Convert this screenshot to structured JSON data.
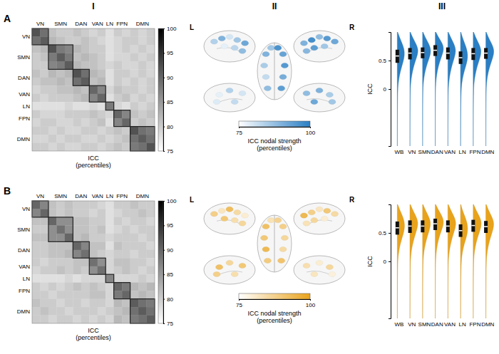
{
  "columns": [
    "I",
    "II",
    "III"
  ],
  "panels": [
    "A",
    "B"
  ],
  "chart_data": [
    {
      "type": "heatmap",
      "color": "#000000",
      "networks": [
        {
          "name": "VN",
          "size": 2
        },
        {
          "name": "SMN",
          "size": 3
        },
        {
          "name": "DAN",
          "size": 2
        },
        {
          "name": "VAN",
          "size": 2
        },
        {
          "name": "LN",
          "size": 1
        },
        {
          "name": "FPN",
          "size": 2
        },
        {
          "name": "DMN",
          "size": 3
        }
      ],
      "cells": [
        [
          92,
          89,
          81,
          80,
          80,
          81,
          80,
          79,
          80,
          78,
          80,
          79,
          80,
          79,
          80
        ],
        [
          91,
          82,
          81,
          80,
          80,
          81,
          80,
          79,
          78,
          79,
          80,
          80,
          79,
          80
        ],
        [
          92,
          88,
          87,
          82,
          81,
          80,
          80,
          78,
          79,
          80,
          79,
          80,
          79
        ],
        [
          91,
          88,
          81,
          82,
          81,
          80,
          78,
          79,
          79,
          80,
          79,
          80
        ],
        [
          91,
          82,
          81,
          81,
          80,
          79,
          80,
          79,
          79,
          80,
          79
        ],
        [
          92,
          89,
          82,
          81,
          78,
          80,
          80,
          79,
          80,
          79
        ],
        [
          91,
          81,
          82,
          78,
          80,
          79,
          80,
          79,
          80
        ],
        [
          90,
          87,
          79,
          81,
          80,
          80,
          79,
          80
        ],
        [
          90,
          78,
          80,
          81,
          79,
          80,
          79
        ],
        [
          88,
          79,
          78,
          80,
          79,
          80
        ],
        [
          90,
          87,
          81,
          80,
          81
        ],
        [
          90,
          80,
          81,
          80
        ],
        [
          92,
          89,
          88
        ],
        [
          91,
          89
        ],
        [
          92
        ]
      ],
      "colorbar": {
        "range": [
          75,
          100
        ],
        "ticks": [
          75,
          80,
          85,
          90,
          95,
          100
        ],
        "label": "ICC (percentiles)"
      }
    },
    {
      "type": "surface",
      "color": "#2a7fc4",
      "labels": [
        "L",
        "R"
      ],
      "strength": [
        [
          84,
          90,
          80,
          86,
          92,
          78,
          83,
          88
        ],
        [
          92,
          95,
          88,
          97,
          90,
          86,
          94,
          89
        ],
        [
          90,
          93,
          85,
          95,
          82,
          91,
          88,
          94,
          86,
          96
        ],
        [
          80,
          84,
          78,
          82,
          79
        ],
        [
          88,
          90,
          85,
          92,
          86
        ]
      ],
      "colorbar": {
        "range": [
          75,
          100
        ],
        "ticks": [
          75,
          100
        ],
        "label": "ICC nodal strength (percentiles)"
      }
    },
    {
      "type": "violin",
      "color": "#2a7fc4",
      "categories": [
        "WB",
        "VN",
        "SMN",
        "DAN",
        "VAN",
        "LN",
        "FPN",
        "DMN"
      ],
      "ylabel": "ICC",
      "ylim": [
        -1,
        1
      ],
      "yticks": [
        0,
        0.5
      ],
      "quartiles": [
        [
          0.46,
          0.58,
          0.69
        ],
        [
          0.52,
          0.63,
          0.72
        ],
        [
          0.54,
          0.64,
          0.73
        ],
        [
          0.58,
          0.68,
          0.77
        ],
        [
          0.52,
          0.63,
          0.73
        ],
        [
          0.44,
          0.55,
          0.66
        ],
        [
          0.51,
          0.62,
          0.72
        ],
        [
          0.53,
          0.63,
          0.72
        ]
      ],
      "density_at": [
        -1,
        -0.8,
        -0.6,
        -0.4,
        -0.2,
        0,
        0.1,
        0.2,
        0.3,
        0.4,
        0.5,
        0.6,
        0.7,
        0.8,
        0.9,
        1
      ],
      "density": [
        [
          0.02,
          0.02,
          0.03,
          0.05,
          0.08,
          0.15,
          0.28,
          0.5,
          0.85,
          1.3,
          1.8,
          2.1,
          2.0,
          1.4,
          0.7,
          0.1
        ],
        [
          0.01,
          0.01,
          0.02,
          0.03,
          0.06,
          0.12,
          0.22,
          0.4,
          0.7,
          1.1,
          1.6,
          2.2,
          2.4,
          1.7,
          0.8,
          0.1
        ],
        [
          0.01,
          0.01,
          0.02,
          0.03,
          0.05,
          0.1,
          0.2,
          0.38,
          0.68,
          1.1,
          1.65,
          2.25,
          2.4,
          1.75,
          0.8,
          0.1
        ],
        [
          0.01,
          0.01,
          0.01,
          0.02,
          0.04,
          0.08,
          0.15,
          0.3,
          0.55,
          0.9,
          1.4,
          2.0,
          2.5,
          2.1,
          1.0,
          0.15
        ],
        [
          0.01,
          0.01,
          0.02,
          0.04,
          0.07,
          0.13,
          0.24,
          0.42,
          0.72,
          1.1,
          1.6,
          2.1,
          2.3,
          1.7,
          0.85,
          0.1
        ],
        [
          0.02,
          0.03,
          0.04,
          0.06,
          0.1,
          0.2,
          0.35,
          0.6,
          1.0,
          1.5,
          1.95,
          2.1,
          1.8,
          1.2,
          0.55,
          0.08
        ],
        [
          0.01,
          0.01,
          0.02,
          0.03,
          0.06,
          0.12,
          0.22,
          0.42,
          0.75,
          1.15,
          1.7,
          2.2,
          2.3,
          1.6,
          0.75,
          0.1
        ],
        [
          0.01,
          0.01,
          0.02,
          0.03,
          0.06,
          0.11,
          0.2,
          0.38,
          0.7,
          1.15,
          1.7,
          2.25,
          2.35,
          1.65,
          0.75,
          0.1
        ]
      ]
    },
    {
      "type": "heatmap",
      "color": "#000000",
      "networks": [
        {
          "name": "VN",
          "size": 2
        },
        {
          "name": "SMN",
          "size": 3
        },
        {
          "name": "DAN",
          "size": 2
        },
        {
          "name": "VAN",
          "size": 2
        },
        {
          "name": "LN",
          "size": 1
        },
        {
          "name": "FPN",
          "size": 2
        },
        {
          "name": "DMN",
          "size": 3
        }
      ],
      "cells": [
        [
          90,
          87,
          81,
          80,
          81,
          80,
          80,
          80,
          79,
          78,
          80,
          80,
          81,
          80,
          80
        ],
        [
          90,
          81,
          80,
          81,
          80,
          80,
          79,
          80,
          78,
          79,
          80,
          80,
          81,
          80
        ],
        [
          90,
          86,
          86,
          81,
          81,
          80,
          80,
          78,
          80,
          79,
          80,
          80,
          79
        ],
        [
          89,
          86,
          81,
          81,
          80,
          81,
          78,
          79,
          80,
          79,
          80,
          80
        ],
        [
          90,
          81,
          82,
          80,
          80,
          79,
          80,
          80,
          80,
          79,
          80
        ],
        [
          90,
          87,
          81,
          81,
          78,
          81,
          80,
          80,
          80,
          79
        ],
        [
          89,
          81,
          80,
          79,
          80,
          80,
          79,
          80,
          80
        ],
        [
          89,
          86,
          79,
          81,
          81,
          80,
          80,
          79
        ],
        [
          89,
          79,
          80,
          81,
          80,
          79,
          80
        ],
        [
          87,
          79,
          79,
          79,
          80,
          79
        ],
        [
          90,
          88,
          82,
          81,
          82
        ],
        [
          90,
          81,
          82,
          81
        ],
        [
          91,
          89,
          88
        ],
        [
          91,
          89
        ],
        [
          91
        ]
      ],
      "colorbar": {
        "range": [
          75,
          100
        ],
        "ticks": [
          75,
          80,
          85,
          90,
          95,
          100
        ],
        "label": "ICC (percentiles)"
      }
    },
    {
      "type": "surface",
      "color": "#e9a31b",
      "labels": [
        "L",
        "R"
      ],
      "strength": [
        [
          88,
          82,
          93,
          85,
          80,
          90,
          84,
          86
        ],
        [
          85,
          90,
          82,
          88,
          94,
          80,
          86,
          83
        ],
        [
          92,
          88,
          90,
          86,
          94,
          85,
          89,
          91,
          83,
          87
        ],
        [
          90,
          86,
          92,
          84,
          88
        ],
        [
          84,
          80,
          86,
          82,
          79
        ]
      ],
      "colorbar": {
        "range": [
          75,
          100
        ],
        "ticks": [
          75,
          100
        ],
        "label": "ICC nodal strength (percentiles)"
      }
    },
    {
      "type": "violin",
      "color": "#e9a31b",
      "categories": [
        "WB",
        "VN",
        "SMN",
        "DAN",
        "VAN",
        "LN",
        "FPN",
        "DMN"
      ],
      "ylabel": "ICC",
      "ylim": [
        -1,
        1
      ],
      "yticks": [
        0,
        0.5
      ],
      "quartiles": [
        [
          0.47,
          0.59,
          0.7
        ],
        [
          0.5,
          0.62,
          0.72
        ],
        [
          0.51,
          0.62,
          0.72
        ],
        [
          0.55,
          0.66,
          0.75
        ],
        [
          0.51,
          0.62,
          0.72
        ],
        [
          0.43,
          0.54,
          0.65
        ],
        [
          0.52,
          0.63,
          0.73
        ],
        [
          0.5,
          0.61,
          0.71
        ]
      ],
      "density_at": [
        -1,
        -0.8,
        -0.6,
        -0.4,
        -0.2,
        0,
        0.1,
        0.2,
        0.3,
        0.4,
        0.5,
        0.6,
        0.7,
        0.8,
        0.9,
        1
      ],
      "density": [
        [
          0.02,
          0.02,
          0.03,
          0.05,
          0.08,
          0.14,
          0.26,
          0.48,
          0.82,
          1.28,
          1.78,
          2.1,
          2.0,
          1.45,
          0.72,
          0.1
        ],
        [
          0.01,
          0.02,
          0.03,
          0.04,
          0.07,
          0.13,
          0.24,
          0.42,
          0.74,
          1.15,
          1.65,
          2.15,
          2.3,
          1.65,
          0.8,
          0.1
        ],
        [
          0.01,
          0.02,
          0.03,
          0.04,
          0.07,
          0.13,
          0.24,
          0.43,
          0.75,
          1.15,
          1.66,
          2.15,
          2.28,
          1.62,
          0.78,
          0.1
        ],
        [
          0.01,
          0.01,
          0.02,
          0.03,
          0.05,
          0.1,
          0.18,
          0.34,
          0.6,
          0.98,
          1.5,
          2.1,
          2.45,
          1.9,
          0.9,
          0.12
        ],
        [
          0.01,
          0.01,
          0.02,
          0.04,
          0.07,
          0.13,
          0.24,
          0.43,
          0.74,
          1.13,
          1.63,
          2.15,
          2.3,
          1.65,
          0.8,
          0.1
        ],
        [
          0.02,
          0.03,
          0.05,
          0.07,
          0.11,
          0.21,
          0.37,
          0.62,
          1.02,
          1.52,
          1.95,
          2.05,
          1.75,
          1.15,
          0.5,
          0.07
        ],
        [
          0.01,
          0.01,
          0.02,
          0.03,
          0.06,
          0.11,
          0.21,
          0.4,
          0.72,
          1.12,
          1.68,
          2.2,
          2.35,
          1.68,
          0.78,
          0.1
        ],
        [
          0.01,
          0.02,
          0.03,
          0.04,
          0.07,
          0.13,
          0.24,
          0.44,
          0.78,
          1.2,
          1.72,
          2.2,
          2.25,
          1.55,
          0.72,
          0.1
        ]
      ]
    }
  ]
}
